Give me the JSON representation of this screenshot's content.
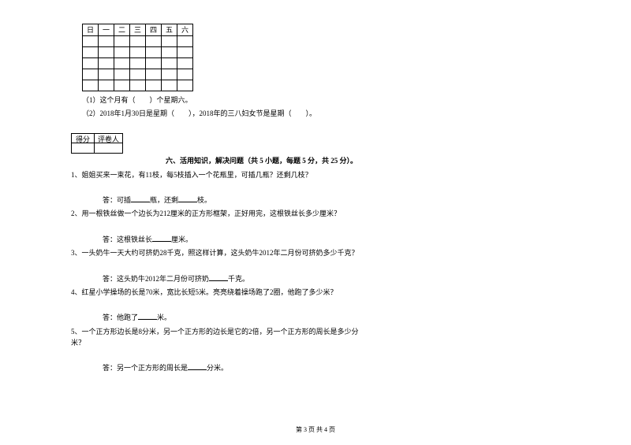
{
  "calendar": {
    "headers": [
      "日",
      "一",
      "二",
      "三",
      "四",
      "五",
      "六"
    ],
    "rows": 5,
    "cols": 7
  },
  "cal_q1": "（1）这个月有（　　）个星期六。",
  "cal_q2": "（2）2018年1月30日是星期（　　），2018年的三八妇女节是星期（　　）。",
  "score_labels": {
    "a": "得分",
    "b": "评卷人"
  },
  "section6": "六、活用知识，解决问题（共 5 小题，每题 5 分，共 25 分）。",
  "p1": "1、姐姐买来一束花，有11枝，每5枝插入一个花瓶里，可插几瓶？还剩几枝？",
  "a1_pre": "答：可插",
  "a1_mid": "瓶，还剩",
  "a1_post": "枝。",
  "p2": "2、用一根铁丝做一个边长为212厘米的正方形框架，正好用完，这根铁丝长多少厘米？",
  "a2_pre": "答：这根铁丝长",
  "a2_post": "厘米。",
  "p3": "3、一头奶牛一天大约可挤奶28千克，照这样计算，这头奶牛2012年二月份可挤奶多少千克？",
  "a3_pre": "答：这头奶牛2012年二月份可挤奶",
  "a3_post": "千克。",
  "p4": "4、红星小学操场的长是70米，宽比长短5米。亮亮绕着操场跑了2圈，他跑了多少米？",
  "a4_pre": "答：他跑了",
  "a4_post": "米。",
  "p5_l1": "5、一个正方形边长是8分米，另一个正方形的边长是它的2倍，另一个正方形的周长是多少分",
  "p5_l2": "米？",
  "a5_pre": "答：另一个正方形的周长是",
  "a5_post": "分米。",
  "footer": "第 3 页 共 4 页"
}
